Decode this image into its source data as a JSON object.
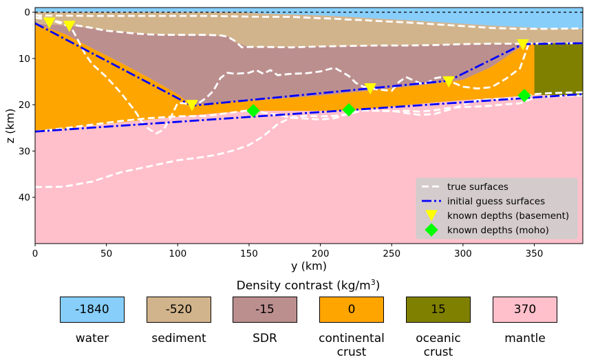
{
  "chart_data": {
    "type": "area",
    "xlabel": "y (km)",
    "ylabel": "z (km)",
    "xlim": [
      0,
      384
    ],
    "ylim": [
      50,
      -1
    ],
    "y_inverted": true,
    "x_ticks": [
      0,
      50,
      100,
      150,
      200,
      250,
      300,
      350
    ],
    "y_ticks": [
      0,
      10,
      20,
      30,
      40
    ],
    "top_dashed_line": 0,
    "layers": [
      {
        "name": "water",
        "density_contrast": -1840,
        "color": "#87cefa"
      },
      {
        "name": "sediment",
        "density_contrast": -520,
        "color": "#d2b48c"
      },
      {
        "name": "SDR",
        "density_contrast": -15,
        "color": "#bc8f8f"
      },
      {
        "name": "continental crust",
        "density_contrast": 0,
        "color": "#ffa500"
      },
      {
        "name": "oceanic crust",
        "density_contrast": 15,
        "color": "#808000"
      },
      {
        "name": "mantle",
        "density_contrast": 370,
        "color": "#ffc0cb"
      }
    ],
    "regions": {
      "water_base": {
        "x": [
          0,
          20,
          40,
          60,
          80,
          100,
          120,
          140,
          160,
          180,
          200,
          220,
          240,
          260,
          280,
          300,
          320,
          340,
          360,
          384
        ],
        "z": [
          0,
          0,
          0,
          0,
          0,
          0,
          0,
          0,
          0.3,
          0.5,
          0.7,
          1.0,
          1.4,
          1.7,
          2.1,
          2.5,
          2.9,
          3.2,
          3.5,
          3.6
        ]
      },
      "sediment_base": {
        "x": [
          0,
          15,
          30,
          45,
          60,
          75,
          90,
          105,
          120,
          135,
          140,
          150,
          160,
          170,
          180,
          190,
          200,
          210,
          220,
          230,
          240,
          250,
          260,
          270,
          280,
          290,
          300,
          310,
          320,
          330,
          340,
          350,
          384
        ],
        "z": [
          2.5,
          2.7,
          3.1,
          3.7,
          4.2,
          4.6,
          4.9,
          5.0,
          5.0,
          5.2,
          6.5,
          7.5,
          7.5,
          7.6,
          7.5,
          7.5,
          7.4,
          7.4,
          7.3,
          7.3,
          7.2,
          7.2,
          7.2,
          7.1,
          7.0,
          7.0,
          6.9,
          6.9,
          6.8,
          6.8,
          6.8,
          6.7,
          6.7
        ]
      },
      "sdr_base": {
        "x": [
          0,
          20,
          40,
          60,
          80,
          100,
          110,
          120,
          140,
          160,
          180,
          200,
          220,
          240,
          260,
          280,
          300,
          320,
          340,
          345
        ],
        "z": [
          2.5,
          4.6,
          7.8,
          10.9,
          14.2,
          17.7,
          20.2,
          19.8,
          19.3,
          18.9,
          18.5,
          18.0,
          17.4,
          16.8,
          16.1,
          15.4,
          14.6,
          11.8,
          7.6,
          6.8
        ]
      },
      "continental_crust_base": {
        "x": [
          0,
          20,
          40,
          60,
          80,
          100,
          120,
          140,
          160,
          180,
          200,
          220,
          240,
          260,
          280,
          300,
          320,
          340,
          350
        ],
        "z": [
          25.8,
          25.2,
          24.5,
          23.8,
          23.2,
          22.6,
          22.0,
          21.5,
          21.3,
          21.3,
          21.3,
          21.2,
          20.7,
          20.1,
          19.5,
          19.0,
          18.6,
          18.1,
          17.9
        ]
      },
      "oceanic_crust": {
        "x_from": 350,
        "x_to": 384,
        "z_top": 6.7,
        "z_bottom": 17.9
      }
    },
    "series": [
      {
        "name": "true surfaces",
        "color": "#ffffff",
        "dash": "dashed",
        "lines": [
          {
            "x": [
              0,
              40,
              60,
              80,
              100,
              120,
              140,
              160,
              180,
              200,
              210,
              220,
              230,
              240,
              260,
              280,
              300,
              320,
              340,
              360,
              384
            ],
            "z": [
              0.7,
              0.8,
              0.8,
              0.8,
              0.8,
              0.8,
              0.9,
              1.0,
              1.0,
              1.3,
              1.4,
              1.6,
              1.7,
              1.9,
              2.2,
              2.6,
              3.0,
              3.4,
              3.6,
              3.6,
              3.5
            ]
          },
          {
            "x": [
              0,
              10,
              20,
              30,
              40,
              50,
              60,
              70,
              80,
              90,
              100,
              110,
              120,
              130,
              135,
              140,
              145,
              150,
              160,
              180,
              200,
              220,
              240,
              260,
              280,
              300,
              320,
              340,
              360,
              384
            ],
            "z": [
              1.2,
              1.6,
              2.3,
              2.9,
              3.4,
              4.0,
              4.3,
              4.6,
              4.8,
              4.9,
              4.9,
              4.9,
              4.9,
              5.0,
              5.3,
              6.2,
              7.6,
              7.5,
              7.5,
              7.6,
              7.4,
              7.3,
              7.2,
              7.2,
              7.1,
              6.9,
              6.8,
              6.8,
              6.7,
              6.7
            ]
          },
          {
            "x": [
              0,
              10,
              20,
              25,
              30,
              35,
              40,
              50,
              60,
              70,
              75,
              80,
              85,
              90,
              95,
              100,
              105,
              110,
              115,
              120,
              125,
              130,
              135,
              140,
              150,
              155,
              160,
              165,
              170,
              180,
              190,
              200,
              210,
              220,
              225,
              230,
              240,
              250,
              255,
              260,
              270,
              275,
              280,
              285,
              290,
              300,
              310,
              320,
              330,
              340,
              346
            ],
            "z": [
              0.6,
              1.5,
              2.7,
              3.1,
              6.0,
              9.0,
              11.2,
              14.0,
              17.4,
              21.3,
              23.8,
              25.3,
              26.2,
              25.4,
              22.8,
              19.6,
              19.7,
              20.3,
              19.6,
              18.5,
              17.0,
              14.2,
              13.1,
              13.3,
              13.1,
              12.5,
              13.3,
              12.5,
              13.6,
              13.3,
              13.2,
              12.8,
              12.0,
              13.8,
              15.3,
              16.1,
              16.7,
              17.0,
              15.1,
              14.0,
              15.4,
              15.3,
              14.3,
              14.0,
              14.8,
              16.1,
              16.5,
              16.2,
              14.4,
              12.1,
              6.9
            ]
          },
          {
            "x": [
              0,
              20,
              40,
              60,
              80,
              100,
              120,
              140,
              150,
              160,
              170,
              180,
              190,
              200,
              210,
              220,
              230,
              240,
              250,
              260,
              270,
              280,
              290,
              300,
              310,
              320,
              330,
              340,
              350,
              360,
              384
            ],
            "z": [
              25.8,
              25.1,
              24.3,
              23.5,
              22.9,
              22.5,
              22.4,
              21.6,
              21.2,
              21.7,
              22.2,
              22.8,
              23.0,
              23.2,
              22.9,
              21.9,
              21.2,
              21.3,
              21.3,
              21.8,
              22.2,
              22.0,
              21.1,
              20.0,
              19.0,
              18.8,
              18.7,
              18.5,
              17.7,
              17.5,
              17.3
            ]
          },
          {
            "x": [
              0,
              20,
              40,
              60,
              80,
              100,
              110,
              120,
              130,
              140,
              150,
              160,
              170,
              180,
              190,
              200,
              210,
              220,
              225,
              230,
              240,
              250,
              260,
              270,
              280,
              290,
              300,
              310,
              320,
              330,
              340,
              350,
              360,
              384
            ],
            "z": [
              37.8,
              37.7,
              36.6,
              34.6,
              33.3,
              32.0,
              31.6,
              31.2,
              30.6,
              29.8,
              28.7,
              26.8,
              24.2,
              22.7,
              22.4,
              22.5,
              22.4,
              22.0,
              21.6,
              21.2,
              21.3,
              21.4,
              21.3,
              21.5,
              21.2,
              20.7,
              20.5,
              20.4,
              20.2,
              19.9,
              19.7,
              18.5,
              18.2,
              18.0
            ]
          }
        ]
      },
      {
        "name": "initial guess surfaces",
        "color": "#0000ff",
        "dash": "dashdot",
        "lines": [
          {
            "x": [
              0,
              110,
              290,
              342,
              384
            ],
            "z": [
              2.4,
              20.2,
              14.8,
              6.9,
              6.7
            ]
          },
          {
            "x": [
              0,
              384
            ],
            "z": [
              25.8,
              17.7
            ]
          }
        ]
      }
    ],
    "points": [
      {
        "name": "known depths (basement)",
        "marker": "triangle-down",
        "color": "#ffff00",
        "x": [
          10,
          24,
          110,
          235,
          290,
          342
        ],
        "z": [
          2.3,
          3.0,
          20.1,
          16.5,
          15.0,
          7.0
        ]
      },
      {
        "name": "known depths (moho)",
        "marker": "diamond",
        "color": "#00ff00",
        "x": [
          153,
          220,
          343
        ],
        "z": [
          21.3,
          21.1,
          18.0
        ]
      }
    ],
    "legend_position": "lower-right"
  },
  "density_title": "Density contrast (kg/m",
  "density_title_sup": "3",
  "density_title_close": ")",
  "density_swatches": [
    {
      "value": "-1840",
      "label": [
        "water"
      ],
      "color": "#87cefa"
    },
    {
      "value": "-520",
      "label": [
        "sediment"
      ],
      "color": "#d2b48c"
    },
    {
      "value": "-15",
      "label": [
        "SDR"
      ],
      "color": "#bc8f8f"
    },
    {
      "value": "0",
      "label": [
        "continental",
        "crust"
      ],
      "color": "#ffa500"
    },
    {
      "value": "15",
      "label": [
        "oceanic",
        "crust"
      ],
      "color": "#808000"
    },
    {
      "value": "370",
      "label": [
        "mantle"
      ],
      "color": "#ffc0cb"
    }
  ]
}
